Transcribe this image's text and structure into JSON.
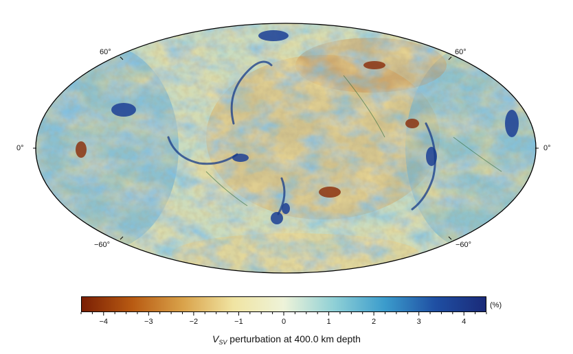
{
  "map": {
    "projection": "Mollweide (Hammer-Aitoff style) global map",
    "field": "Vsv shear-wave velocity perturbation",
    "center_longitude_note": "Pacific-centred"
  },
  "latitude_labels": {
    "left": [
      "60°",
      "0°",
      "−60°"
    ],
    "right": [
      "60°",
      "0°",
      "−60°"
    ]
  },
  "colorbar": {
    "unit": "(%)",
    "min": -4.5,
    "max": 4.5,
    "tick_labels": [
      "−4",
      "−3",
      "−2",
      "−1",
      "0",
      "1",
      "2",
      "3",
      "4"
    ],
    "colors": [
      "#7a1f04",
      "#b85a12",
      "#d9a24a",
      "#f0e4a2",
      "#eef3d9",
      "#8fd0d6",
      "#3b9ccc",
      "#1f4fa3",
      "#1a2a78"
    ]
  },
  "title": {
    "symbol": "V",
    "subscript": "SV",
    "text": "perturbation at 400.0 km depth"
  }
}
